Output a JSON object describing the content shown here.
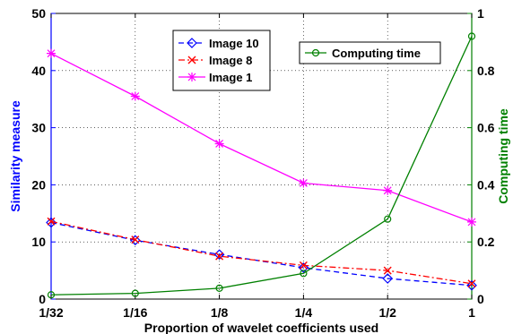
{
  "chart_data": {
    "type": "line",
    "title": "",
    "xlabel": "Proportion of wavelet coefficients used",
    "ylabel_left": "Similarity measure",
    "ylabel_right": "Computing time",
    "categories": [
      "1/32",
      "1/16",
      "1/8",
      "1/4",
      "1/2",
      "1"
    ],
    "ylim_left": [
      0,
      50
    ],
    "ylim_right": [
      0,
      1
    ],
    "yticks_left": [
      "0",
      "10",
      "20",
      "30",
      "40",
      "50"
    ],
    "yticks_right": [
      "0",
      "0.2",
      "0.4",
      "0.6",
      "0.8",
      "1"
    ],
    "grid": "dotted",
    "series": [
      {
        "name": "Image 10",
        "axis": "left",
        "values": [
          13.4,
          10.3,
          7.8,
          5.5,
          3.6,
          2.4
        ],
        "color": "#0000ff",
        "dash": "dashed",
        "marker": "diamond"
      },
      {
        "name": "Image 8",
        "axis": "left",
        "values": [
          13.6,
          10.4,
          7.5,
          5.9,
          5.0,
          2.7
        ],
        "color": "#ff0000",
        "dash": "dashdot",
        "marker": "x"
      },
      {
        "name": "Image 1",
        "axis": "left",
        "values": [
          43.0,
          35.5,
          27.2,
          20.3,
          19.0,
          13.5
        ],
        "color": "#ff00ff",
        "dash": "solid",
        "marker": "star"
      },
      {
        "name": "Computing time",
        "axis": "right",
        "values": [
          0.015,
          0.02,
          0.038,
          0.09,
          0.28,
          0.92
        ],
        "color": "#008000",
        "dash": "solid",
        "marker": "circle"
      }
    ],
    "legends": [
      {
        "position": "top-center",
        "entries": [
          "Image 10",
          "Image 8",
          "Image 1"
        ]
      },
      {
        "position": "top-right",
        "entries": [
          "Computing time"
        ]
      }
    ],
    "colors": {
      "left_axis": "#0000ff",
      "right_axis": "#008000"
    }
  }
}
